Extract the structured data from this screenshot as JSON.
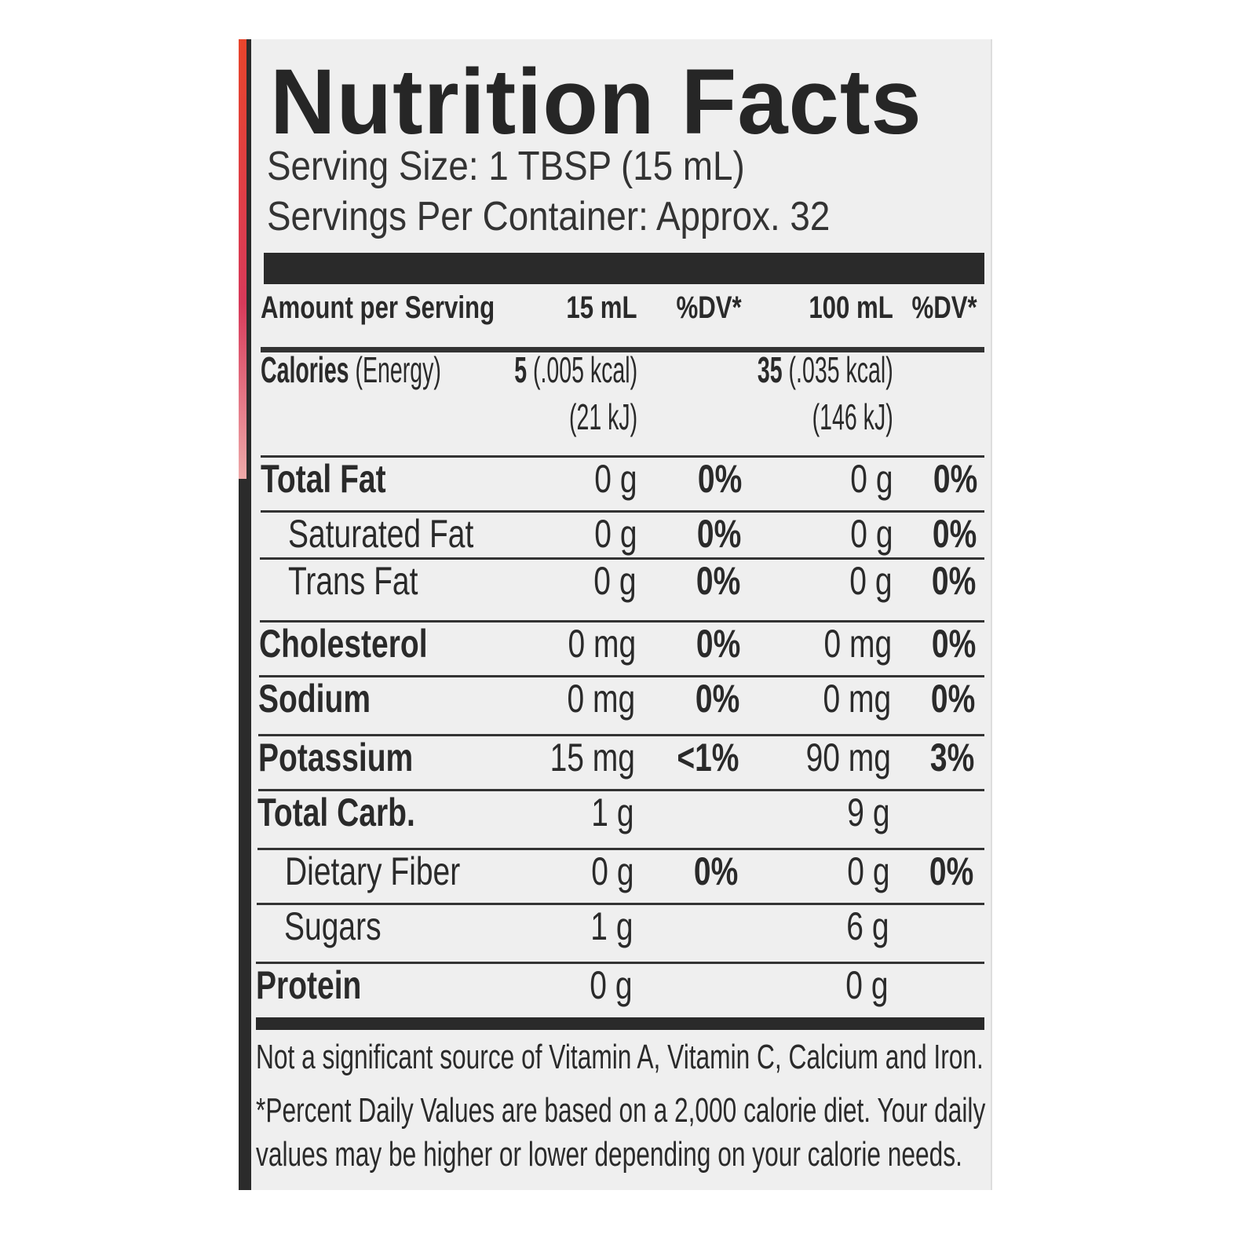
{
  "label": {
    "title": "Nutrition Facts",
    "serving_size": "Serving Size: 1 TBSP (15 mL)",
    "servings_per_container": "Servings Per Container: Approx. 32",
    "header": {
      "amount": "Amount per Serving",
      "col1": "15 mL",
      "dv1": "%DV*",
      "col2": "100 mL",
      "dv2": "%DV*"
    },
    "calories": {
      "label": "Calories",
      "label_sub": "(Energy)",
      "v1_bold": "5",
      "v1": "(.005 kcal)",
      "v1_kj": "(21 kJ)",
      "v2_bold": "35",
      "v2": "(.035 kcal)",
      "v2_kj": "(146 kJ)"
    },
    "rows": [
      {
        "label": "Total Fat",
        "bold": true,
        "indent": false,
        "v1": "0 g",
        "dv1": "0%",
        "v2": "0 g",
        "dv2": "0%"
      },
      {
        "label": "Saturated Fat",
        "bold": false,
        "indent": true,
        "v1": "0 g",
        "dv1": "0%",
        "v2": "0 g",
        "dv2": "0%"
      },
      {
        "label": "Trans Fat",
        "bold": false,
        "indent": true,
        "v1": "0 g",
        "dv1": "0%",
        "v2": "0 g",
        "dv2": "0%"
      },
      {
        "label": "Cholesterol",
        "bold": true,
        "indent": false,
        "v1": "0 mg",
        "dv1": "0%",
        "v2": "0 mg",
        "dv2": "0%"
      },
      {
        "label": "Sodium",
        "bold": true,
        "indent": false,
        "v1": "0 mg",
        "dv1": "0%",
        "v2": "0 mg",
        "dv2": "0%"
      },
      {
        "label": "Potassium",
        "bold": true,
        "indent": false,
        "v1": "15 mg",
        "dv1": "<1%",
        "v2": "90 mg",
        "dv2": "3%"
      },
      {
        "label": "Total Carb.",
        "bold": true,
        "indent": false,
        "v1": "1 g",
        "dv1": "",
        "v2": "9 g",
        "dv2": ""
      },
      {
        "label": "Dietary Fiber",
        "bold": false,
        "indent": true,
        "v1": "0 g",
        "dv1": "0%",
        "v2": "0 g",
        "dv2": "0%"
      },
      {
        "label": "Sugars",
        "bold": false,
        "indent": true,
        "v1": "1 g",
        "dv1": "",
        "v2": "6 g",
        "dv2": ""
      },
      {
        "label": "Protein",
        "bold": true,
        "indent": false,
        "v1": "0 g",
        "dv1": "",
        "v2": "0 g",
        "dv2": ""
      }
    ],
    "footnote_1": "Not a significant source of Vitamin A, Vitamin C, Calcium and Iron.",
    "footnote_2": "*Percent Daily Values are based on a 2,000 calorie diet. Your daily",
    "footnote_3": "values may be higher or lower depending on your calorie needs."
  }
}
